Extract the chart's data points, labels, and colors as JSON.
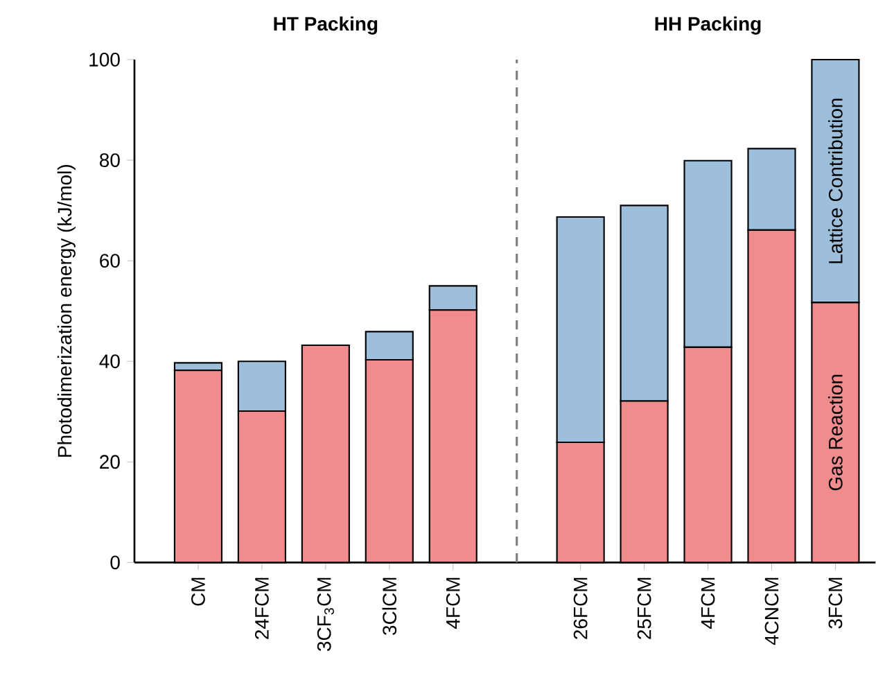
{
  "chart_data": {
    "type": "bar",
    "stacked": true,
    "ylabel": "Photodimerization energy (kJ/mol)",
    "annotations": [
      "HT Packing",
      "HH Packing"
    ],
    "categories": [
      "CM",
      "24FCM",
      "3CF$_{3}$CM",
      "3ClCM",
      "4FCM",
      null,
      "26FCM",
      "25FCM",
      "4FCM",
      "4CNCM",
      "3FCM"
    ],
    "series": [
      {
        "name": "Gas Reaction",
        "color": "#f08c8e",
        "values": [
          38.2,
          30.1,
          43.2,
          40.3,
          50.2,
          null,
          23.9,
          32.1,
          42.8,
          66.1,
          51.7
        ]
      },
      {
        "name": "Lattice Contribution",
        "color": "#9dbfdc",
        "values": [
          1.5,
          9.9,
          0,
          5.6,
          4.8,
          null,
          44.8,
          38.9,
          37.1,
          16.2,
          48.3
        ]
      }
    ],
    "ylim": [
      0,
      100
    ],
    "yticks": [
      0,
      20,
      40,
      60,
      80,
      100
    ]
  }
}
